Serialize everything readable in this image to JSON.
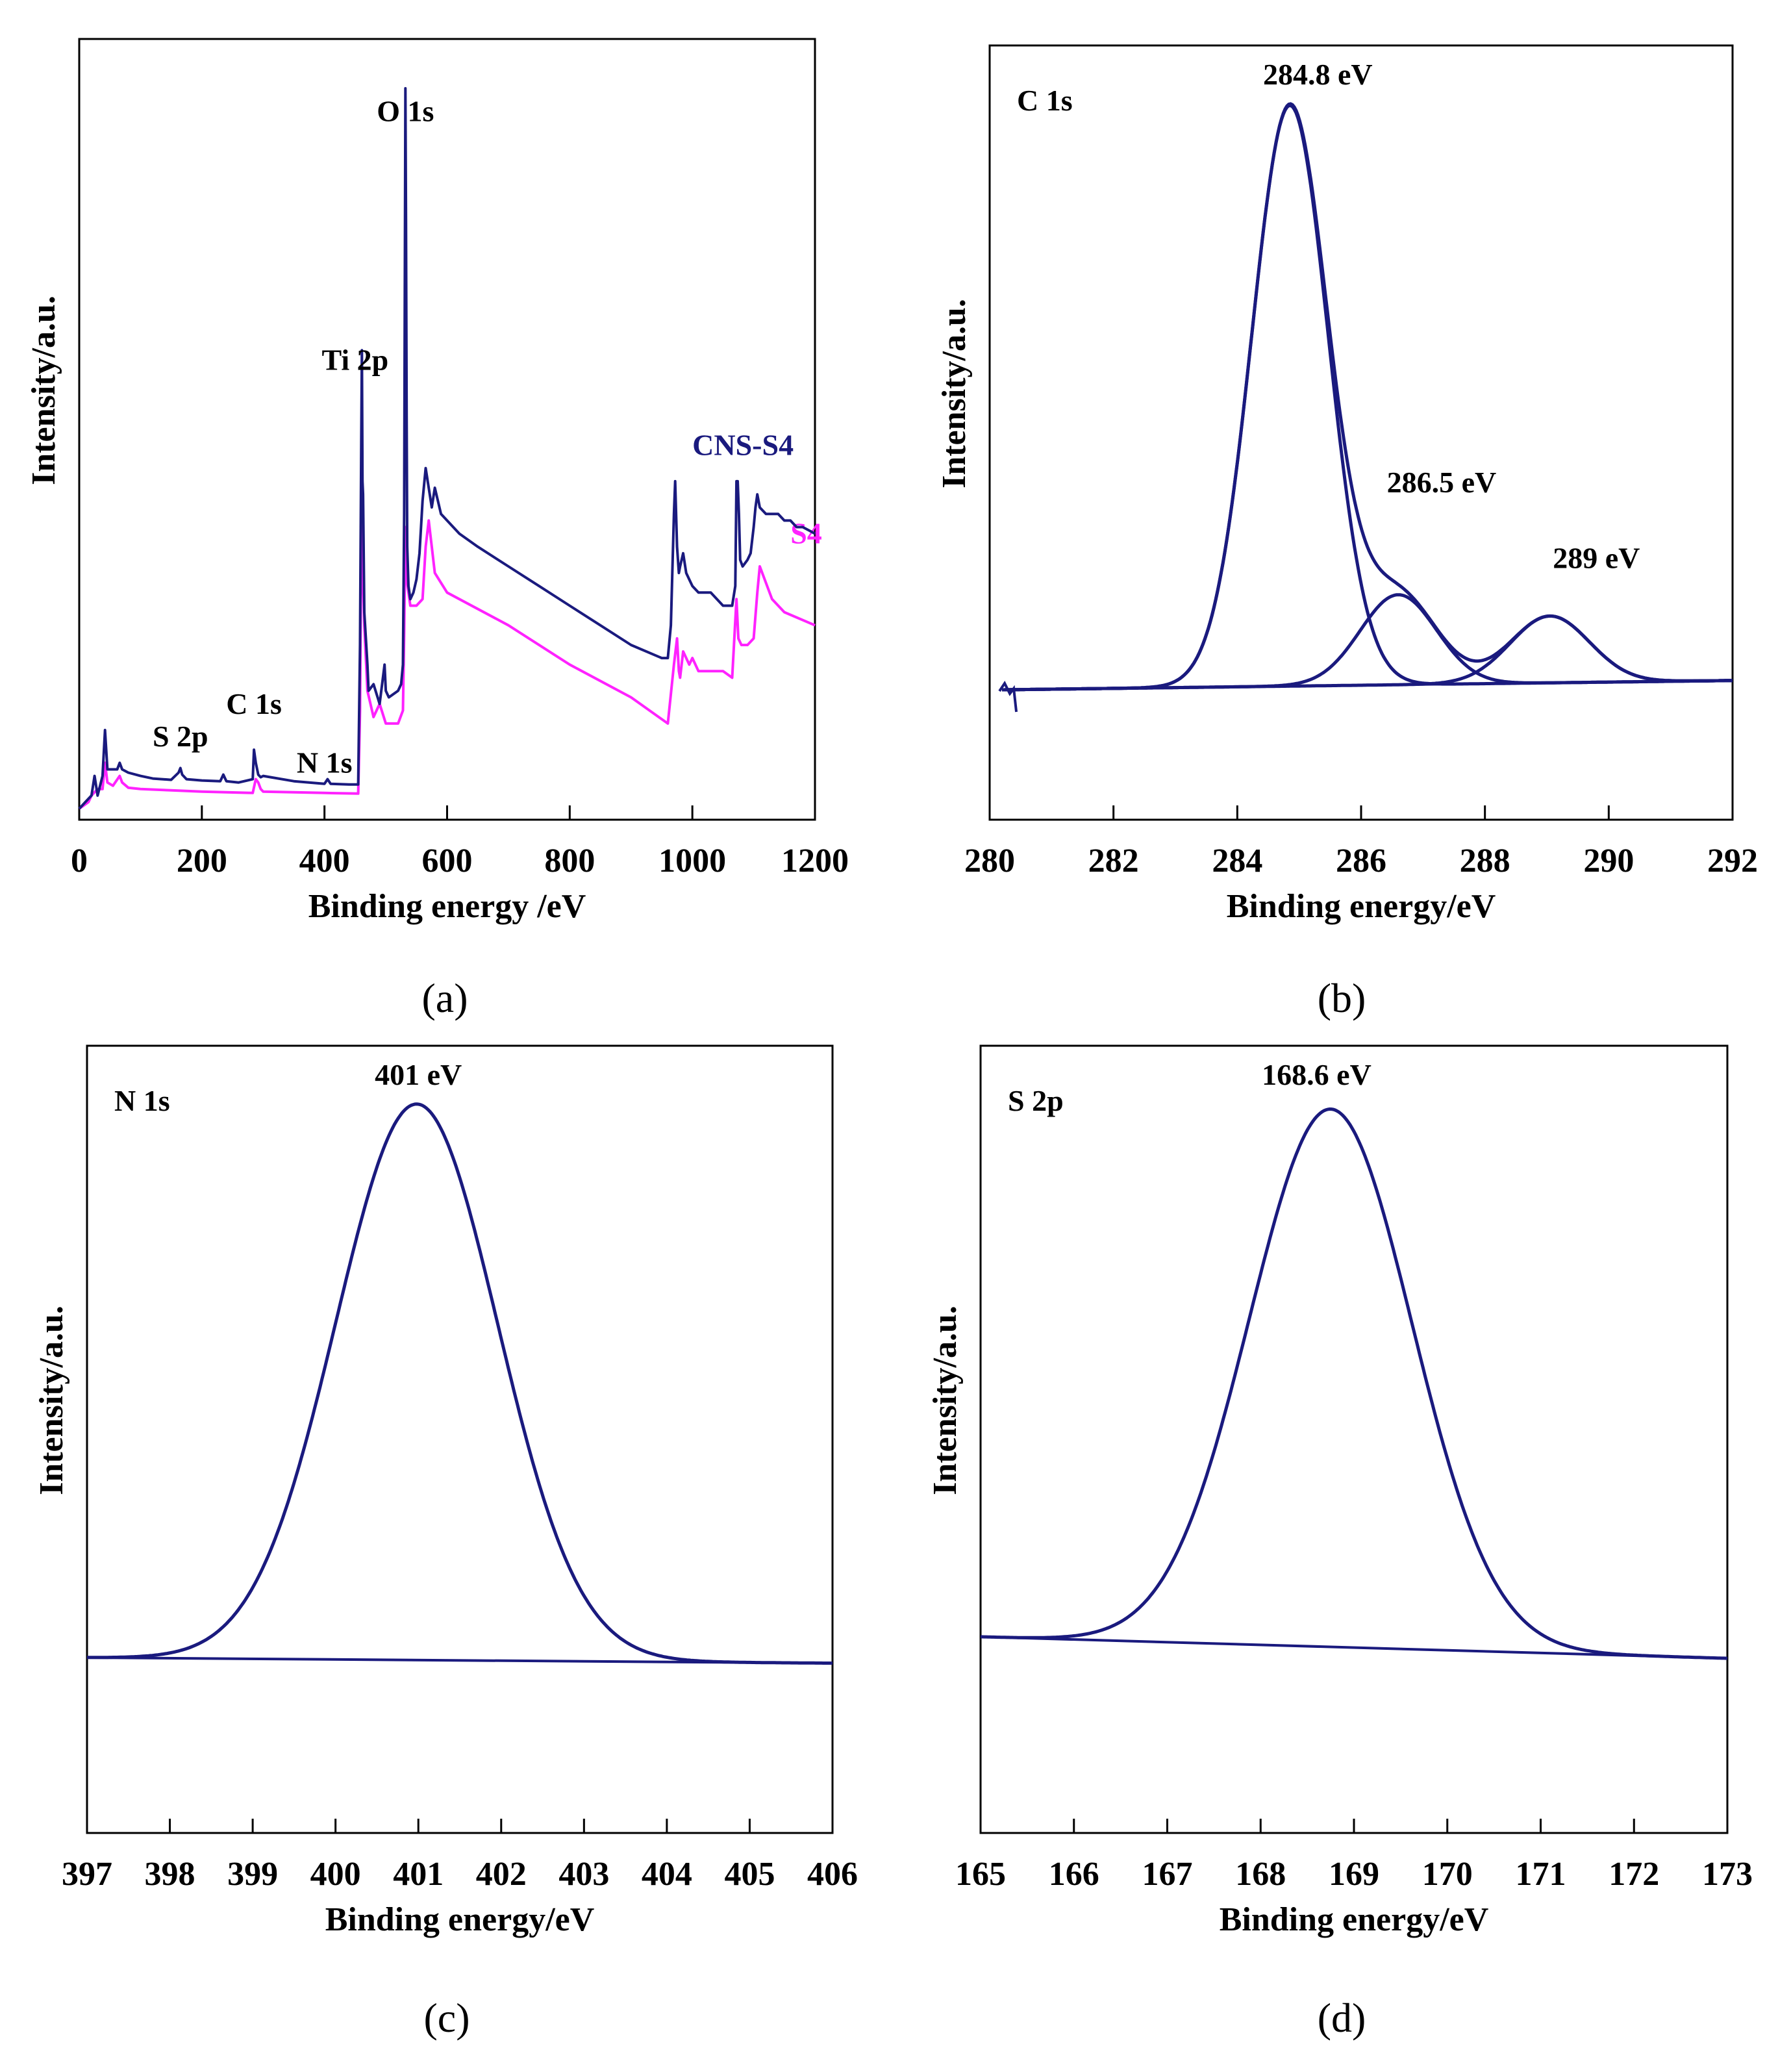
{
  "chart_data": [
    {
      "type": "line",
      "panel": "(a)",
      "title": "",
      "xlabel": "Binding energy /eV",
      "ylabel": "Intensity/a.u.",
      "xlim": [
        0,
        1200
      ],
      "ylim": [
        0,
        110
      ],
      "xticks": [
        0,
        200,
        400,
        600,
        800,
        1000,
        1200
      ],
      "annotations": [
        {
          "text": "O 1s",
          "x": 532,
          "y": 105
        },
        {
          "text": "Ti 2p",
          "x": 450,
          "y": 67
        },
        {
          "text": "C 1s",
          "x": 285,
          "y": 14.5
        },
        {
          "text": "S 2p",
          "x": 165,
          "y": 9.5
        },
        {
          "text": "N 1s",
          "x": 400,
          "y": 5.5
        }
      ],
      "series": [
        {
          "name": "CNS-S4",
          "color": "#1a1a7e",
          "label_at": [
            1000,
            54
          ],
          "x": [
            0,
            10,
            20,
            25,
            30,
            38,
            42,
            46,
            55,
            62,
            66,
            70,
            80,
            100,
            120,
            150,
            162,
            165,
            168,
            175,
            200,
            230,
            235,
            240,
            260,
            283,
            285,
            288,
            292,
            296,
            300,
            350,
            400,
            405,
            410,
            440,
            455,
            458,
            460,
            461,
            462,
            463,
            465,
            470,
            472,
            480,
            490,
            498,
            500,
            505,
            520,
            525,
            528,
            530,
            531,
            532,
            533,
            534,
            535,
            537,
            540,
            545,
            550,
            555,
            560,
            565,
            570,
            575,
            580,
            590,
            600,
            620,
            650,
            700,
            750,
            800,
            850,
            900,
            950,
            960,
            965,
            970,
            972,
            975,
            978,
            980,
            985,
            990,
            995,
            1000,
            1010,
            1030,
            1050,
            1065,
            1070,
            1072,
            1074,
            1076,
            1078,
            1082,
            1090,
            1095,
            1100,
            1103,
            1106,
            1110,
            1120,
            1130,
            1140,
            1150,
            1160,
            1170,
            1180,
            1190,
            1200
          ],
          "y": [
            0,
            1,
            2,
            5,
            2,
            5,
            12,
            6,
            6,
            6,
            7,
            6,
            5.5,
            5,
            4.6,
            4.4,
            5.5,
            6.2,
            5.2,
            4.5,
            4.3,
            4.2,
            5.2,
            4.2,
            4,
            4.5,
            9,
            7,
            5.2,
            4.8,
            5,
            4.2,
            3.8,
            4.5,
            3.8,
            3.7,
            3.7,
            25,
            56,
            70,
            50,
            48,
            30,
            22,
            18,
            19,
            16,
            22,
            18,
            17,
            18,
            19,
            22,
            45,
            80,
            110,
            90,
            60,
            40,
            34,
            32,
            33,
            35,
            39,
            47,
            52,
            49,
            46,
            49,
            45,
            44,
            42,
            40,
            37,
            34,
            31,
            28,
            25,
            23,
            23,
            28,
            45,
            50,
            40,
            36,
            37,
            39,
            36,
            35,
            34,
            33,
            33,
            31,
            31,
            34,
            50,
            50,
            45,
            38,
            37,
            38,
            39,
            43,
            46,
            48,
            46,
            45,
            45,
            45,
            44,
            44,
            43,
            43,
            42.5,
            42
          ]
        },
        {
          "name": "S4",
          "color": "#ff22ff",
          "label_at": [
            1160,
            40.5
          ],
          "x": [
            0,
            15,
            20,
            30,
            38,
            42,
            46,
            55,
            66,
            70,
            80,
            100,
            150,
            200,
            283,
            288,
            292,
            296,
            300,
            400,
            455,
            458,
            460,
            461,
            463,
            465,
            470,
            480,
            490,
            500,
            520,
            528,
            530,
            532,
            534,
            540,
            550,
            560,
            565,
            570,
            580,
            600,
            700,
            800,
            900,
            960,
            970,
            975,
            978,
            980,
            985,
            995,
            1000,
            1010,
            1050,
            1065,
            1072,
            1075,
            1080,
            1090,
            1100,
            1106,
            1110,
            1130,
            1150,
            1200
          ],
          "y": [
            0,
            1,
            2,
            3,
            3,
            7,
            4,
            3.5,
            5,
            4,
            3.2,
            3,
            2.8,
            2.6,
            2.4,
            4.5,
            4,
            3,
            2.6,
            2.4,
            2.3,
            15,
            41,
            50,
            35,
            28,
            18,
            14,
            16,
            13,
            13,
            15,
            27,
            43,
            35,
            31,
            31,
            32,
            40,
            44,
            36,
            33,
            28,
            22,
            17,
            13,
            22,
            26,
            21,
            20,
            24,
            22,
            23,
            21,
            21,
            20,
            32,
            26,
            25,
            25,
            26,
            33,
            37,
            32,
            30,
            28
          ]
        }
      ]
    },
    {
      "type": "line",
      "panel": "(b)",
      "title": "C 1s",
      "xlabel": "Binding energy/eV",
      "ylabel": "Intensity/a.u.",
      "xlim": [
        280,
        292
      ],
      "ylim": [
        0,
        100
      ],
      "xticks": [
        280,
        282,
        284,
        286,
        288,
        290,
        292
      ],
      "peak_labels": [
        {
          "text": "284.8 eV",
          "x": 284.8
        },
        {
          "text": "286.5 eV",
          "x": 286.5
        },
        {
          "text": "289 eV",
          "x": 289
        }
      ],
      "components": [
        {
          "center": 284.85,
          "height": 100,
          "fwhm": 1.45
        },
        {
          "center": 286.6,
          "height": 15.5,
          "fwhm": 1.45
        },
        {
          "center": 289.05,
          "height": 11.5,
          "fwhm": 1.5
        }
      ],
      "baseline": [
        280.2,
        0,
        292,
        1.6
      ],
      "color": "#1a1a7e"
    },
    {
      "type": "line",
      "panel": "(c)",
      "title": "N 1s",
      "xlabel": "Binding energy/eV",
      "ylabel": "Intensity/a.u.",
      "xlim": [
        397,
        406
      ],
      "ylim": [
        0,
        100
      ],
      "xticks": [
        397,
        398,
        399,
        400,
        401,
        402,
        403,
        404,
        405,
        406
      ],
      "peak_labels": [
        {
          "text": "401 eV",
          "x": 401
        }
      ],
      "components": [
        {
          "center": 400.98,
          "height": 100,
          "fwhm": 2.3
        }
      ],
      "baseline": [
        397,
        0,
        406,
        -1
      ],
      "color": "#1a1a7e"
    },
    {
      "type": "line",
      "panel": "(d)",
      "title": "S 2p",
      "xlabel": "Binding energy/eV",
      "ylabel": "Intensity/a.u.",
      "xlim": [
        165,
        173
      ],
      "ylim": [
        0,
        100
      ],
      "xticks": [
        165,
        166,
        167,
        168,
        169,
        170,
        171,
        172,
        173
      ],
      "peak_labels": [
        {
          "text": "168.6 eV",
          "x": 168.6
        }
      ],
      "components": [
        {
          "center": 168.75,
          "height": 100,
          "fwhm": 2.05
        }
      ],
      "baseline": [
        165,
        0,
        173,
        -4
      ],
      "color": "#1a1a7e"
    }
  ]
}
